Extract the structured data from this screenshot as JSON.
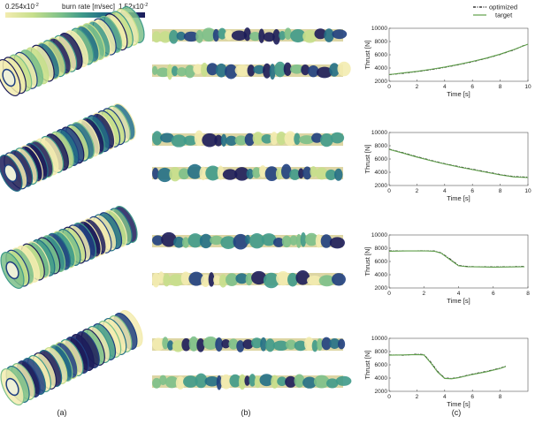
{
  "colorbar": {
    "min_label": "0.254x10",
    "min_exp": "-2",
    "title": "burn rate [m/sec]",
    "max_label": "1.52x10",
    "max_exp": "-2",
    "colors": [
      "#f3ecb0",
      "#c6df8c",
      "#7cc08a",
      "#3f9a8a",
      "#226f86",
      "#1f3f80",
      "#1c1c5a"
    ]
  },
  "panel_labels": [
    "(a)",
    "(b)",
    "(c)"
  ],
  "legend": {
    "optimized": "optimized",
    "target": "target",
    "optimized_color": "#111111",
    "target_color": "#5f9f4a"
  },
  "chart_data": [
    {
      "type": "line",
      "xlabel": "Time [s]",
      "ylabel": "Thrust [N]",
      "xlim": [
        0,
        10
      ],
      "ylim": [
        2000,
        10000
      ],
      "xticks": [
        0,
        2,
        4,
        6,
        8,
        10
      ],
      "yticks": [
        2000,
        4000,
        6000,
        8000,
        10000
      ],
      "series": [
        {
          "name": "optimized",
          "x": [
            0,
            1,
            2,
            3,
            4,
            5,
            6,
            7,
            8,
            9,
            9.8
          ],
          "y": [
            3000,
            3200,
            3450,
            3750,
            4100,
            4500,
            4950,
            5450,
            6050,
            6750,
            7500
          ]
        },
        {
          "name": "target",
          "x": [
            0,
            1,
            2,
            3,
            4,
            5,
            6,
            7,
            8,
            9,
            10
          ],
          "y": [
            3000,
            3250,
            3500,
            3800,
            4150,
            4550,
            5000,
            5500,
            6100,
            6800,
            7600
          ]
        }
      ]
    },
    {
      "type": "line",
      "xlabel": "Time [s]",
      "ylabel": "Thrust [N]",
      "xlim": [
        0,
        10
      ],
      "ylim": [
        2000,
        10000
      ],
      "xticks": [
        0,
        2,
        4,
        6,
        8,
        10
      ],
      "yticks": [
        2000,
        4000,
        6000,
        8000,
        10000
      ],
      "series": [
        {
          "name": "optimized",
          "x": [
            0,
            1,
            2,
            3,
            4,
            5,
            6,
            7,
            8,
            9,
            10
          ],
          "y": [
            7500,
            6950,
            6350,
            5800,
            5300,
            4850,
            4450,
            4050,
            3650,
            3350,
            3250
          ]
        },
        {
          "name": "target",
          "x": [
            0,
            1,
            2,
            3,
            4,
            5,
            6,
            7,
            8,
            9,
            10
          ],
          "y": [
            7450,
            6900,
            6300,
            5750,
            5250,
            4800,
            4400,
            4000,
            3600,
            3300,
            3200
          ]
        }
      ]
    },
    {
      "type": "line",
      "xlabel": "Time [s]",
      "ylabel": "Thrust [N]",
      "xlim": [
        0,
        8
      ],
      "ylim": [
        2000,
        10000
      ],
      "xticks": [
        0,
        2,
        4,
        6,
        8
      ],
      "yticks": [
        2000,
        4000,
        6000,
        8000,
        10000
      ],
      "series": [
        {
          "name": "optimized",
          "x": [
            0,
            1,
            2,
            2.6,
            3,
            3.5,
            4,
            4.5,
            5,
            6,
            7,
            7.8
          ],
          "y": [
            7600,
            7600,
            7620,
            7580,
            7300,
            6400,
            5400,
            5250,
            5200,
            5180,
            5200,
            5250
          ]
        },
        {
          "name": "target",
          "x": [
            0,
            1,
            2,
            2.6,
            3,
            3.5,
            4,
            4.5,
            5,
            6,
            7,
            7.8
          ],
          "y": [
            7550,
            7580,
            7600,
            7550,
            7250,
            6300,
            5350,
            5200,
            5180,
            5150,
            5170,
            5200
          ]
        }
      ]
    },
    {
      "type": "line",
      "xlabel": "Time [s]",
      "ylabel": "Thrust [N]",
      "xlim": [
        0,
        10
      ],
      "ylim": [
        2000,
        10000
      ],
      "xticks": [
        0,
        2,
        4,
        6,
        8
      ],
      "yticks": [
        2000,
        4000,
        6000,
        8000,
        10000
      ],
      "series": [
        {
          "name": "optimized",
          "x": [
            0,
            1,
            2,
            2.5,
            3,
            3.5,
            4,
            4.5,
            5,
            6,
            7,
            8,
            8.4
          ],
          "y": [
            7500,
            7450,
            7600,
            7550,
            6400,
            5000,
            4000,
            3950,
            4100,
            4600,
            5000,
            5500,
            5800
          ]
        },
        {
          "name": "target",
          "x": [
            0,
            1,
            2,
            2.5,
            3,
            3.5,
            4,
            4.5,
            5,
            6,
            7,
            8,
            8.4
          ],
          "y": [
            7450,
            7500,
            7550,
            7500,
            6300,
            4900,
            3950,
            3900,
            4050,
            4550,
            4950,
            5450,
            5750
          ]
        }
      ]
    }
  ]
}
